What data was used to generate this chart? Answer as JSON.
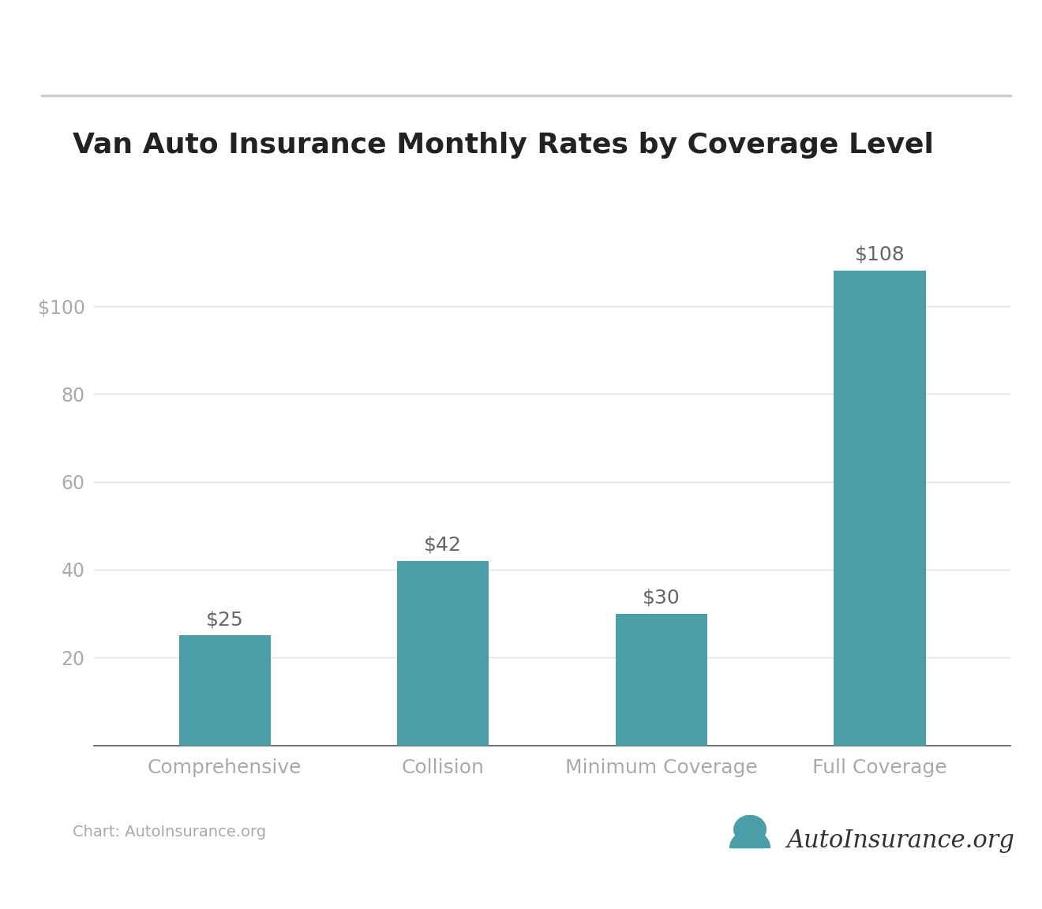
{
  "title": "Van Auto Insurance Monthly Rates by Coverage Level",
  "categories": [
    "Comprehensive",
    "Collision",
    "Minimum Coverage",
    "Full Coverage"
  ],
  "values": [
    25,
    42,
    30,
    108
  ],
  "bar_color": "#4A9EA8",
  "bar_labels": [
    "$25",
    "$42",
    "$30",
    "$108"
  ],
  "yticks": [
    20,
    40,
    60,
    80,
    100
  ],
  "ytick_labels": [
    "20",
    "40",
    "60",
    "80",
    "$100"
  ],
  "ylim": [
    0,
    120
  ],
  "title_fontsize": 26,
  "title_color": "#222222",
  "tick_label_color": "#aaaaaa",
  "bar_label_color": "#666666",
  "bar_label_fontsize": 18,
  "xtick_fontsize": 18,
  "ytick_fontsize": 17,
  "grid_color": "#e0e0e0",
  "background_color": "#ffffff",
  "top_line_color": "#cccccc",
  "caption": "Chart: AutoInsurance.org",
  "caption_color": "#aaaaaa",
  "caption_fontsize": 14,
  "logo_text": "AutoInsurance.org",
  "logo_fontsize": 22
}
